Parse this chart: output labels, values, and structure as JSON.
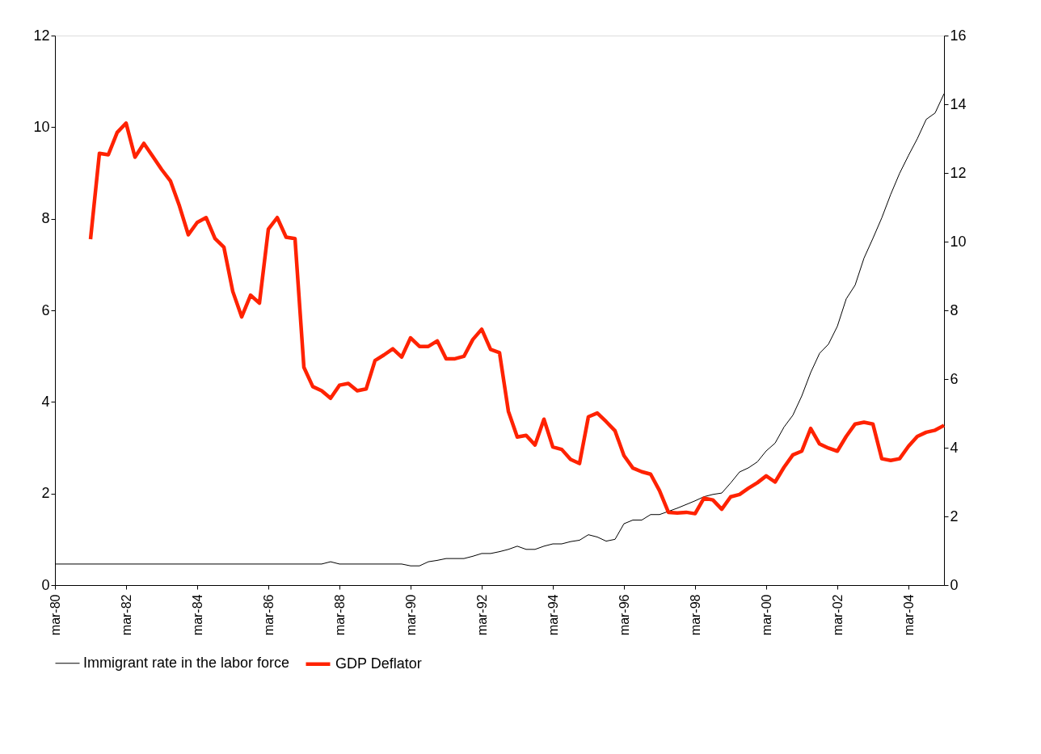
{
  "chart_data": {
    "type": "line",
    "categories": [
      "mar-80",
      null,
      null,
      null,
      null,
      null,
      null,
      null,
      "mar-82",
      null,
      null,
      null,
      null,
      null,
      null,
      null,
      "mar-84",
      null,
      null,
      null,
      null,
      null,
      null,
      null,
      "mar-86",
      null,
      null,
      null,
      null,
      null,
      null,
      null,
      "mar-88",
      null,
      null,
      null,
      null,
      null,
      null,
      null,
      "mar-90",
      null,
      null,
      null,
      null,
      null,
      null,
      null,
      "mar-92",
      null,
      null,
      null,
      null,
      null,
      null,
      null,
      "mar-94",
      null,
      null,
      null,
      null,
      null,
      null,
      null,
      "mar-96",
      null,
      null,
      null,
      null,
      null,
      null,
      null,
      "mar-98",
      null,
      null,
      null,
      null,
      null,
      null,
      null,
      "mar-00",
      null,
      null,
      null,
      null,
      null,
      null,
      null,
      "mar-02",
      null,
      null,
      null,
      null,
      null,
      null,
      null,
      "mar-04",
      null,
      null,
      null,
      null
    ],
    "series": [
      {
        "name": "Immigrant rate in the labor force",
        "color": "#000000",
        "axis": "y",
        "values": [
          0.46,
          0.46,
          0.46,
          0.46,
          0.46,
          0.46,
          0.46,
          0.46,
          0.46,
          0.46,
          0.46,
          0.46,
          0.46,
          0.46,
          0.46,
          0.46,
          0.46,
          0.46,
          0.46,
          0.46,
          0.46,
          0.46,
          0.46,
          0.46,
          0.46,
          0.46,
          0.46,
          0.46,
          0.46,
          0.46,
          0.46,
          0.51,
          0.46,
          0.46,
          0.46,
          0.46,
          0.46,
          0.46,
          0.46,
          0.46,
          0.42,
          0.42,
          0.51,
          0.54,
          0.58,
          0.58,
          0.58,
          0.63,
          0.69,
          0.69,
          0.73,
          0.78,
          0.85,
          0.78,
          0.78,
          0.85,
          0.9,
          0.9,
          0.95,
          0.98,
          1.1,
          1.05,
          0.96,
          1.0,
          1.34,
          1.42,
          1.42,
          1.54,
          1.54,
          1.61,
          1.68,
          1.76,
          1.84,
          1.93,
          1.98,
          2.01,
          2.23,
          2.47,
          2.56,
          2.69,
          2.93,
          3.1,
          3.45,
          3.71,
          4.13,
          4.64,
          5.06,
          5.26,
          5.65,
          6.25,
          6.55,
          7.14,
          7.57,
          8.02,
          8.53,
          8.99,
          9.38,
          9.75,
          10.17,
          10.31,
          10.73
        ]
      },
      {
        "name": "GDP Deflator",
        "color": "#ff2200",
        "axis": "y2",
        "values": [
          null,
          null,
          null,
          null,
          10.07,
          12.57,
          12.53,
          13.18,
          13.45,
          12.46,
          12.86,
          12.48,
          12.1,
          11.76,
          11.04,
          10.2,
          10.56,
          10.7,
          10.09,
          9.84,
          8.55,
          7.81,
          8.44,
          8.21,
          10.36,
          10.7,
          10.13,
          10.09,
          6.34,
          5.78,
          5.66,
          5.44,
          5.82,
          5.87,
          5.66,
          5.71,
          6.54,
          6.7,
          6.88,
          6.64,
          7.2,
          6.95,
          6.95,
          7.11,
          6.59,
          6.59,
          6.66,
          7.15,
          7.45,
          6.86,
          6.77,
          5.06,
          4.31,
          4.36,
          4.08,
          4.83,
          4.02,
          3.95,
          3.66,
          3.54,
          4.9,
          5.01,
          4.76,
          4.49,
          3.77,
          3.41,
          3.3,
          3.23,
          2.75,
          2.12,
          2.1,
          2.12,
          2.08,
          2.53,
          2.48,
          2.21,
          2.57,
          2.64,
          2.82,
          2.98,
          3.18,
          3.0,
          3.43,
          3.79,
          3.9,
          4.56,
          4.11,
          3.99,
          3.9,
          4.33,
          4.69,
          4.74,
          4.69,
          3.68,
          3.63,
          3.68,
          4.04,
          4.33,
          4.45,
          4.51,
          4.65
        ]
      }
    ],
    "ylim": [
      0,
      12
    ],
    "yticks": [
      0,
      2,
      4,
      6,
      8,
      10,
      12
    ],
    "y2lim": [
      0,
      16
    ],
    "y2ticks": [
      0,
      2,
      4,
      6,
      8,
      10,
      12,
      14,
      16
    ],
    "grid": false,
    "legend": "bottom",
    "marker": "none",
    "line_style": "solid"
  }
}
